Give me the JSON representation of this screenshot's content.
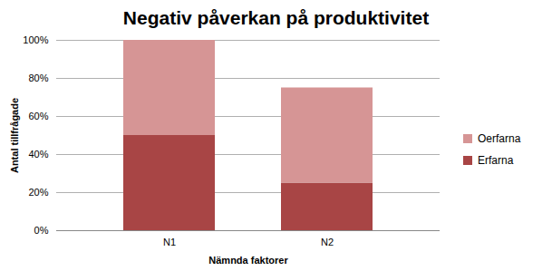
{
  "chart_data": {
    "type": "bar",
    "title": "Negativ påverkan på produktivitet",
    "x_label": "Nämnda faktorer",
    "y_label": "Antal tillfrågade",
    "categories": [
      "N1",
      "N2"
    ],
    "series": [
      {
        "name": "Erfarna",
        "color": "#a84545",
        "values": [
          50,
          25
        ]
      },
      {
        "name": "Oerfarna",
        "color": "#d69595",
        "values": [
          50,
          50
        ]
      }
    ],
    "stacked": true,
    "ylim": [
      0,
      100
    ],
    "yticks": [
      {
        "value": 0,
        "label": "0%"
      },
      {
        "value": 20,
        "label": "20%"
      },
      {
        "value": 40,
        "label": "40%"
      },
      {
        "value": 60,
        "label": "60%"
      },
      {
        "value": 80,
        "label": "80%"
      },
      {
        "value": 100,
        "label": "100%"
      }
    ],
    "grid": true,
    "legend": "right"
  }
}
